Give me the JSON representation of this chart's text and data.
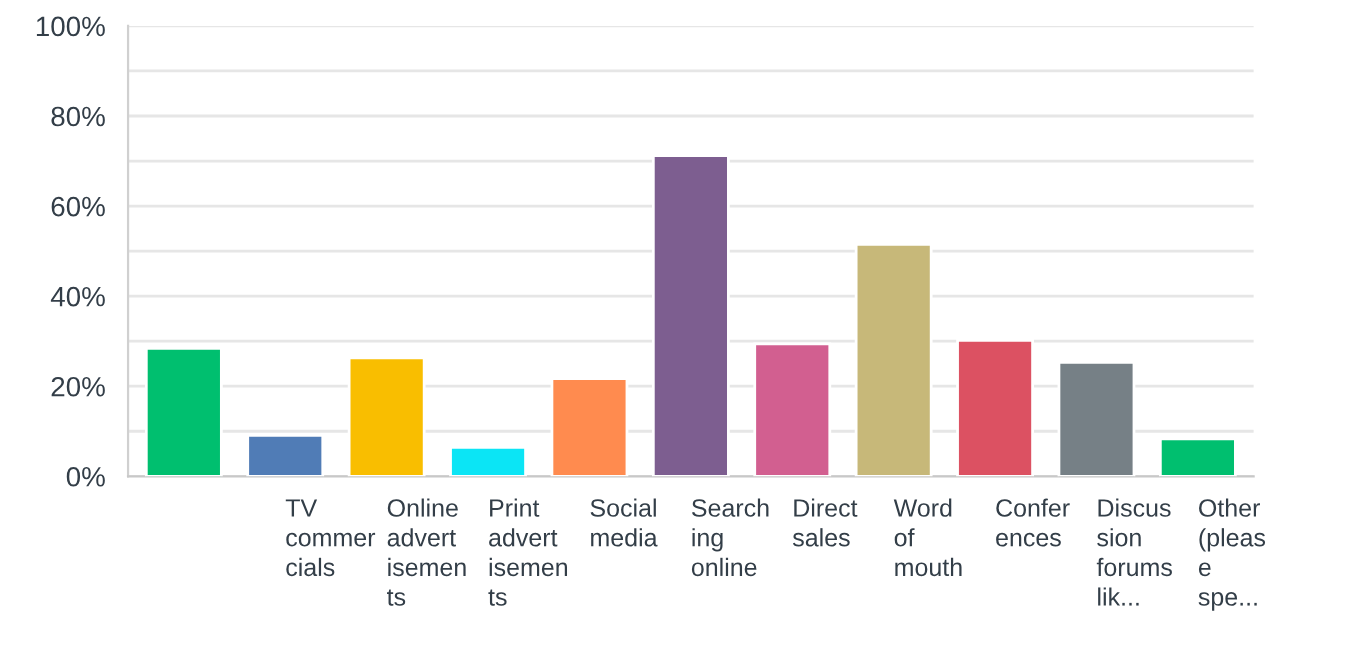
{
  "chart_data": {
    "type": "bar",
    "categories": [
      null,
      "TV\ncommer\ncials",
      "Online\nadvert\nisemen\nts",
      "Print\nadvert\nisemen\nts",
      "Social\nmedia",
      "Search\ning\nonline",
      "Direct\nsales",
      "Word\nof\nmouth",
      "Confer\nences",
      "Discus\nsion\nforums\nlik...",
      "Other\n(pleas\ne\nspe..."
    ],
    "values": [
      28.4,
      9.1,
      26.3,
      6.4,
      21.7,
      71.2,
      29.4,
      51.5,
      30.2,
      25.3,
      8.3
    ],
    "colors": [
      "#00bf6f",
      "#507cb6",
      "#f9be00",
      "#0be5f5",
      "#ff8b4f",
      "#7d5e90",
      "#d25f90",
      "#c7b879",
      "#dc5162",
      "#768086",
      "#00bf6f"
    ],
    "ylim": [
      0,
      100
    ],
    "yticks": [
      {
        "value": 0,
        "label": "0%"
      },
      {
        "value": 10,
        "label": null
      },
      {
        "value": 20,
        "label": "20%"
      },
      {
        "value": 30,
        "label": null
      },
      {
        "value": 40,
        "label": "40%"
      },
      {
        "value": 50,
        "label": null
      },
      {
        "value": 60,
        "label": "60%"
      },
      {
        "value": 70,
        "label": null
      },
      {
        "value": 80,
        "label": "80%"
      },
      {
        "value": 90,
        "label": null
      },
      {
        "value": 100,
        "label": "100%"
      }
    ],
    "grid": "y",
    "legend": false
  }
}
